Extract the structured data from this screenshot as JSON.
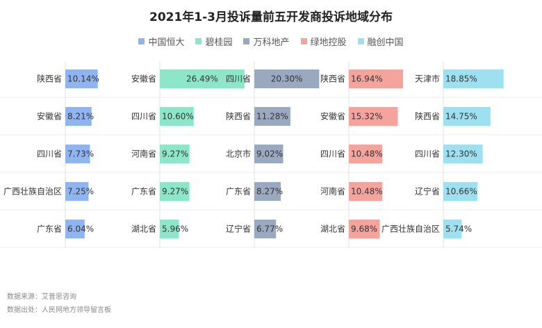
{
  "title": "2021年1-3月投诉量前五开发商投诉地域分布",
  "legend": [
    {
      "name": "中国恒大",
      "color": "#8fb4f0"
    },
    {
      "name": "碧桂园",
      "color": "#8ee6c8"
    },
    {
      "name": "万科地产",
      "color": "#9aa8c0"
    },
    {
      "name": "绿地控股",
      "color": "#f4a49c"
    },
    {
      "name": "融创中国",
      "color": "#9ee0f0"
    }
  ],
  "source_line": "数据来源：艾普思咨询",
  "origin_line": "数据出处：人民网地方领导留言板",
  "chart_data": {
    "type": "bar",
    "title": "2021年1-3月投诉量前五开发商投诉地域分布",
    "unit": "%",
    "value_max": 30,
    "series": [
      {
        "name": "中国恒大",
        "color": "#8fb4f0",
        "categories": [
          "陕西省",
          "安徽省",
          "四川省",
          "广西壮族自治区",
          "广东省"
        ],
        "values": [
          10.14,
          8.21,
          7.73,
          7.25,
          6.04
        ],
        "labels": [
          "10.14%",
          "8.21%",
          "7.73%",
          "7.25%",
          "6.04%"
        ]
      },
      {
        "name": "碧桂园",
        "color": "#8ee6c8",
        "categories": [
          "安徽省",
          "四川省",
          "河南省",
          "广东省",
          "湖北省"
        ],
        "values": [
          26.49,
          10.6,
          9.27,
          9.27,
          5.96
        ],
        "labels": [
          "26.49%",
          "10.60%",
          "9.27%",
          "9.27%",
          "5.96%"
        ]
      },
      {
        "name": "万科地产",
        "color": "#9aa8c0",
        "categories": [
          "四川省",
          "陕西省",
          "北京市",
          "广东省",
          "辽宁省"
        ],
        "values": [
          20.3,
          11.28,
          9.02,
          8.27,
          6.77
        ],
        "labels": [
          "20.30%",
          "11.28%",
          "9.02%",
          "8.27%",
          "6.77%"
        ]
      },
      {
        "name": "绿地控股",
        "color": "#f4a49c",
        "categories": [
          "陕西省",
          "安徽省",
          "四川省",
          "河南省",
          "湖北省"
        ],
        "values": [
          16.94,
          15.32,
          10.48,
          10.48,
          9.68
        ],
        "labels": [
          "16.94%",
          "15.32%",
          "10.48%",
          "10.48%",
          "9.68%"
        ]
      },
      {
        "name": "融创中国",
        "color": "#9ee0f0",
        "categories": [
          "天津市",
          "陕西省",
          "四川省",
          "辽宁省",
          "广西壮族自治区"
        ],
        "values": [
          18.85,
          14.75,
          12.3,
          10.66,
          5.74
        ],
        "labels": [
          "18.85%",
          "14.75%",
          "12.30%",
          "10.66%",
          "5.74%"
        ]
      }
    ]
  }
}
